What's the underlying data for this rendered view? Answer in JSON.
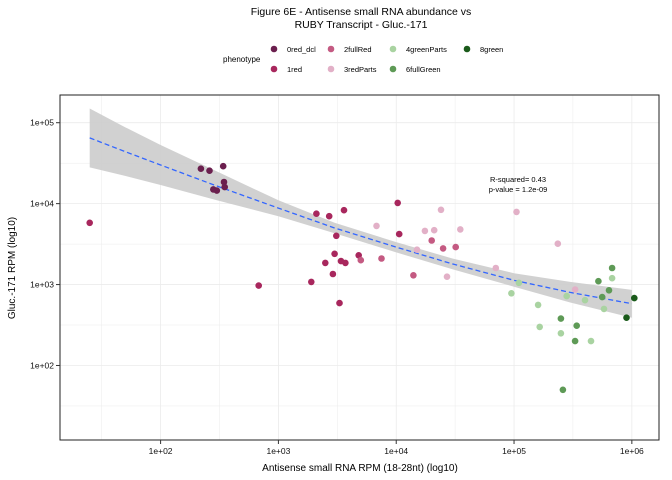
{
  "chart_data": {
    "type": "scatter",
    "title": "Figure 6E - Antisense small RNA abundance vs",
    "subtitle": "RUBY Transcript - Gluc.-171",
    "xlabel": "Antisense small RNA RPM (18-28nt) (log10)",
    "ylabel": "Gluc.-171 RPM (log10)",
    "x_scale": "log10",
    "y_scale": "log10",
    "xlim": [
      14,
      1700000
    ],
    "ylim": [
      12,
      220000
    ],
    "x_ticks": [
      {
        "value": 100,
        "label": "1e+02"
      },
      {
        "value": 1000,
        "label": "1e+03"
      },
      {
        "value": 10000,
        "label": "1e+04"
      },
      {
        "value": 100000,
        "label": "1e+05"
      },
      {
        "value": 1000000,
        "label": "1e+06"
      }
    ],
    "y_ticks": [
      {
        "value": 100,
        "label": "1e+02"
      },
      {
        "value": 1000,
        "label": "1e+03"
      },
      {
        "value": 10000,
        "label": "1e+04"
      },
      {
        "value": 100000,
        "label": "1e+05"
      }
    ],
    "grid": true,
    "legend_title": "phenotype",
    "legend_position": "top",
    "annotations": [
      "R-squared= 0.43",
      "p-value = 1.2e-09"
    ],
    "series": [
      {
        "name": "0red_dcl",
        "color": "#6b1f4e",
        "points": [
          {
            "x": 220,
            "y": 27000
          },
          {
            "x": 260,
            "y": 25500
          },
          {
            "x": 280,
            "y": 15000
          },
          {
            "x": 300,
            "y": 14500
          },
          {
            "x": 340,
            "y": 29000
          },
          {
            "x": 345,
            "y": 18500
          },
          {
            "x": 350,
            "y": 16000
          }
        ]
      },
      {
        "name": "1red",
        "color": "#a8275d",
        "points": [
          {
            "x": 25,
            "y": 5800
          },
          {
            "x": 680,
            "y": 970
          },
          {
            "x": 1900,
            "y": 1080
          },
          {
            "x": 2100,
            "y": 7500
          },
          {
            "x": 2500,
            "y": 1850
          },
          {
            "x": 2700,
            "y": 7000
          },
          {
            "x": 2900,
            "y": 1350
          },
          {
            "x": 3000,
            "y": 2400
          },
          {
            "x": 3100,
            "y": 4000
          },
          {
            "x": 3300,
            "y": 590
          },
          {
            "x": 3400,
            "y": 1950
          },
          {
            "x": 3600,
            "y": 8300
          },
          {
            "x": 3700,
            "y": 1850
          },
          {
            "x": 4800,
            "y": 2300
          },
          {
            "x": 10300,
            "y": 10200
          },
          {
            "x": 10600,
            "y": 4200
          }
        ]
      },
      {
        "name": "2fullRed",
        "color": "#c45a82",
        "points": [
          {
            "x": 5000,
            "y": 2000
          },
          {
            "x": 7500,
            "y": 2100
          },
          {
            "x": 14000,
            "y": 1300
          },
          {
            "x": 20000,
            "y": 3500
          },
          {
            "x": 25000,
            "y": 2800
          },
          {
            "x": 32000,
            "y": 2900
          }
        ]
      },
      {
        "name": "3redParts",
        "color": "#e2b0c7",
        "points": [
          {
            "x": 6800,
            "y": 5300
          },
          {
            "x": 15000,
            "y": 2700
          },
          {
            "x": 17500,
            "y": 4600
          },
          {
            "x": 21000,
            "y": 4700
          },
          {
            "x": 24000,
            "y": 8400
          },
          {
            "x": 27000,
            "y": 1250
          },
          {
            "x": 35000,
            "y": 4800
          },
          {
            "x": 70000,
            "y": 1600
          },
          {
            "x": 105000,
            "y": 7900
          },
          {
            "x": 235000,
            "y": 3200
          },
          {
            "x": 330000,
            "y": 870
          }
        ]
      },
      {
        "name": "4greenParts",
        "color": "#a9d3a1",
        "points": [
          {
            "x": 95000,
            "y": 780
          },
          {
            "x": 110000,
            "y": 1050
          },
          {
            "x": 160000,
            "y": 560
          },
          {
            "x": 165000,
            "y": 300
          },
          {
            "x": 250000,
            "y": 250
          },
          {
            "x": 280000,
            "y": 720
          },
          {
            "x": 400000,
            "y": 640
          },
          {
            "x": 450000,
            "y": 200
          },
          {
            "x": 580000,
            "y": 500
          },
          {
            "x": 680000,
            "y": 1200
          }
        ]
      },
      {
        "name": "6fullGreen",
        "color": "#5e9a56",
        "points": [
          {
            "x": 250000,
            "y": 380
          },
          {
            "x": 260000,
            "y": 50
          },
          {
            "x": 330000,
            "y": 200
          },
          {
            "x": 340000,
            "y": 310
          },
          {
            "x": 520000,
            "y": 1100
          },
          {
            "x": 560000,
            "y": 700
          },
          {
            "x": 640000,
            "y": 850
          },
          {
            "x": 680000,
            "y": 1600
          }
        ]
      },
      {
        "name": "8green",
        "color": "#1a5a1a",
        "points": [
          {
            "x": 900000,
            "y": 390
          },
          {
            "x": 1050000,
            "y": 680
          }
        ]
      }
    ],
    "trend": {
      "style": "dashed",
      "color": "#3366ff",
      "band_color": "#cccccc",
      "x": [
        25,
        50,
        100,
        300,
        1000,
        3000,
        10000,
        30000,
        100000,
        300000,
        1000000
      ],
      "y": [
        65000,
        44000,
        30000,
        16500,
        8800,
        5000,
        2900,
        1800,
        1130,
        800,
        580
      ],
      "lower": [
        28000,
        22000,
        17000,
        11000,
        7000,
        4300,
        2500,
        1550,
        940,
        600,
        390
      ],
      "upper": [
        150000,
        88000,
        53000,
        25000,
        11000,
        5800,
        3350,
        2100,
        1380,
        1080,
        860
      ]
    }
  }
}
